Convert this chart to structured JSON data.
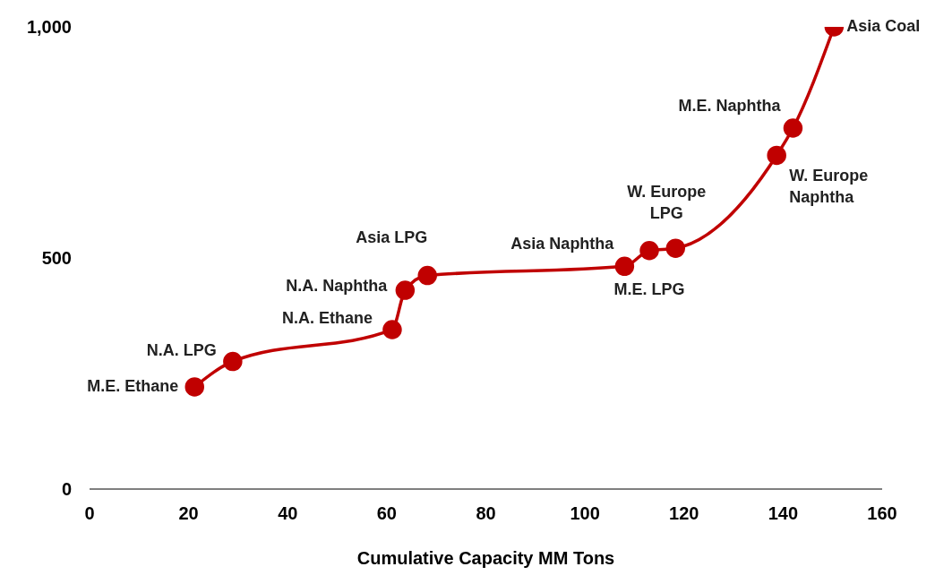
{
  "chart_data": {
    "type": "line",
    "xlabel": "Cumulative Capacity MM Tons",
    "x": [
      21.2,
      28.9,
      61.1,
      63.7,
      68.2,
      108,
      113,
      118.3,
      138.7,
      142,
      150.3
    ],
    "series": [
      {
        "color": "#c00000",
        "values": [
          221,
          276,
          345,
          430,
          462,
          482,
          516,
          521,
          722,
          781,
          1000
        ]
      }
    ],
    "xlim": [
      0,
      160
    ],
    "xticks": [
      0,
      20,
      40,
      60,
      80,
      100,
      120,
      140,
      160
    ],
    "ylim": [
      0,
      1000
    ],
    "yticks": [
      0,
      500,
      {
        "value": 1000,
        "label": "1,000"
      }
    ],
    "grid": false,
    "legend": false,
    "marker": "circle",
    "line_style": "solid",
    "annotations": [
      {
        "text": "M.E. Ethane",
        "x": 21.2,
        "y": 221
      },
      {
        "text": "N.A. LPG",
        "x": 28.9,
        "y": 276
      },
      {
        "text": "N.A. Ethane",
        "x": 61.1,
        "y": 345
      },
      {
        "text": "N.A. Naphtha",
        "x": 63.7,
        "y": 430
      },
      {
        "text": "Asia LPG",
        "x": 68.2,
        "y": 462
      },
      {
        "text": "Asia Naphtha",
        "x": 108,
        "y": 482
      },
      {
        "text": "M.E. LPG",
        "x": 113,
        "y": 516
      },
      {
        "text": "W. Europe LPG",
        "x": 118.3,
        "y": 521
      },
      {
        "text": "W. Europe Naphtha",
        "x": 138.7,
        "y": 722
      },
      {
        "text": "M.E. Naphtha",
        "x": 142,
        "y": 781
      },
      {
        "text": "Asia Coal",
        "x": 150.3,
        "y": 1000
      }
    ]
  }
}
